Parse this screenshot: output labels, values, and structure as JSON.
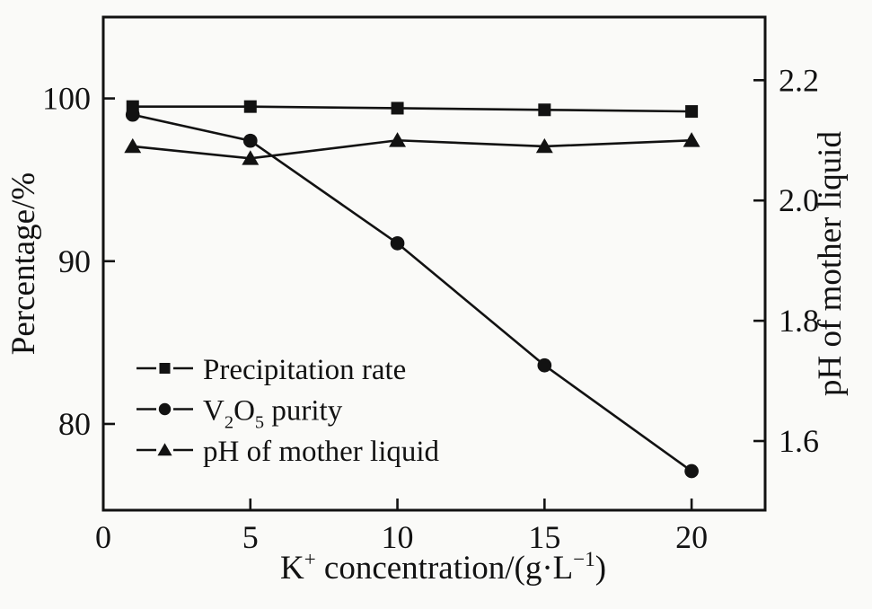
{
  "figure": {
    "background": "#fafaf8",
    "ink": "#121212"
  },
  "chart_data": {
    "type": "line",
    "title": "",
    "x": [
      1,
      5,
      10,
      15,
      20
    ],
    "series": [
      {
        "name": "Precipitation rate",
        "axis": "left",
        "marker": "square",
        "color": "#121212",
        "values": [
          99.5,
          99.5,
          99.4,
          99.3,
          99.2
        ]
      },
      {
        "name": "V2O5 purity",
        "axis": "left",
        "marker": "circle",
        "color": "#121212",
        "values": [
          99.0,
          97.4,
          91.1,
          83.6,
          77.1
        ]
      },
      {
        "name": "pH of mother liquid",
        "axis": "right",
        "marker": "triangle",
        "color": "#121212",
        "values": [
          2.09,
          2.07,
          2.1,
          2.09,
          2.1
        ]
      }
    ],
    "legend": [
      {
        "marker": "square",
        "segments": [
          {
            "t": "Precipitation rate"
          }
        ]
      },
      {
        "marker": "circle",
        "segments": [
          {
            "t": "V"
          },
          {
            "t": "2",
            "sub": true
          },
          {
            "t": "O"
          },
          {
            "t": "5",
            "sub": true
          },
          {
            "t": " purity"
          }
        ]
      },
      {
        "marker": "triangle",
        "segments": [
          {
            "t": "pH of mother liquid"
          }
        ]
      }
    ],
    "legend_position": "inside-lower-left",
    "xlabel_segments": [
      {
        "t": "K"
      },
      {
        "t": "+",
        "sup": true
      },
      {
        "t": " concentration/(g·L",
        "": ""
      },
      {
        "t": "−1",
        "sup": true
      },
      {
        "t": ")"
      }
    ],
    "ylabel_left": "Percentage/%",
    "ylabel_right": "pH of mother liquid",
    "xlim": [
      0,
      22.5
    ],
    "xtick_labels": [
      "0",
      "5",
      "10",
      "15",
      "20"
    ],
    "xtick_values": [
      0,
      5,
      10,
      15,
      20
    ],
    "ylim_left": [
      74.7,
      105.0
    ],
    "ytick_labels_left": [
      "80",
      "90",
      "100"
    ],
    "ytick_values_left": [
      80,
      90,
      100
    ],
    "ylim_right": [
      1.485,
      2.305
    ],
    "ytick_labels_right": [
      "1.6",
      "1.8",
      "2.0",
      "2.2"
    ],
    "ytick_values_right": [
      1.6,
      1.8,
      2.0,
      2.2
    ],
    "grid": false
  }
}
